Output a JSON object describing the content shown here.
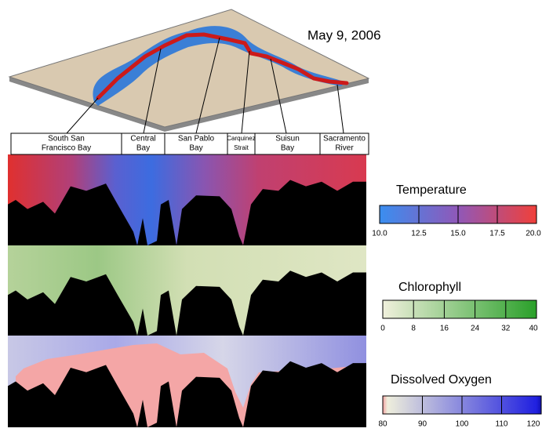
{
  "date": "May 9, 2006",
  "regions": [
    {
      "lines": [
        "South San",
        "Francisco Bay"
      ]
    },
    {
      "lines": [
        "Central",
        "Bay"
      ]
    },
    {
      "lines": [
        "San Pablo",
        "Bay"
      ]
    },
    {
      "lines": [
        "Carquinez",
        "Strait"
      ]
    },
    {
      "lines": [
        "Suisun",
        "Bay"
      ]
    },
    {
      "lines": [
        "Sacramento",
        "River"
      ]
    }
  ],
  "legends": [
    {
      "title": "Temperature",
      "ticks": [
        {
          "value": 10,
          "label": "10.0"
        },
        {
          "value": 12.5,
          "label": "12.5"
        },
        {
          "value": 15,
          "label": "15.0"
        },
        {
          "value": 17.5,
          "label": "17.5"
        },
        {
          "value": 20,
          "label": "20.0"
        }
      ]
    },
    {
      "title": "Chlorophyll",
      "ticks": [
        0,
        8,
        16,
        24,
        32,
        40
      ]
    },
    {
      "title": "Dissolved Oxygen",
      "ticks": [
        80,
        90,
        100,
        110,
        120
      ]
    }
  ]
}
